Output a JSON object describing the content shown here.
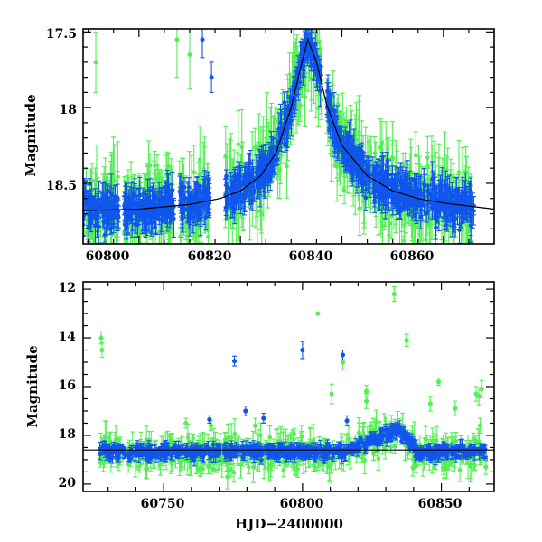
{
  "colors": {
    "green": "#55ee55",
    "blue": "#1155ee",
    "model": "#000000",
    "frame": "#000000"
  },
  "chart_data": [
    {
      "type": "scatter",
      "title": "",
      "xlabel": "",
      "ylabel": "Magnitude",
      "xlim": [
        60789,
        60870
      ],
      "ylim": [
        18.9,
        17.48
      ],
      "y_inverted": true,
      "x_ticks": [
        "60800",
        "60820",
        "60840",
        "60860"
      ],
      "y_ticks": [
        "17.5",
        "18",
        "18.5"
      ],
      "grid": false,
      "legend": "none",
      "model_curve": {
        "x": [
          60789,
          60800,
          60810,
          60816,
          60820,
          60824,
          60827,
          60830,
          60832,
          60833.3,
          60835,
          60837,
          60840,
          60845,
          60850,
          60855,
          60860,
          60865,
          60870
        ],
        "y": [
          18.68,
          18.67,
          18.64,
          18.6,
          18.55,
          18.45,
          18.3,
          18.0,
          17.72,
          17.55,
          17.7,
          17.98,
          18.25,
          18.45,
          18.55,
          18.6,
          18.63,
          18.65,
          18.67
        ]
      },
      "series": [
        {
          "color": "green",
          "segments": [
            [
              60789,
              60796
            ],
            [
              60797,
              60807
            ],
            [
              60808,
              60814
            ],
            [
              60817,
              60836
            ],
            [
              60837,
              60866
            ]
          ],
          "typical_mag": 18.6,
          "typical_err": 0.12,
          "scatter": 0.18
        },
        {
          "color": "blue",
          "segments": [
            [
              60789,
              60796
            ],
            [
              60797,
              60807
            ],
            [
              60808,
              60814
            ],
            [
              60817,
              60836
            ],
            [
              60837,
              60866
            ]
          ],
          "typical_mag": 18.62,
          "typical_err": 0.06,
          "scatter": 0.08
        }
      ],
      "outliers": [
        {
          "color": "blue",
          "x": 60812.5,
          "y": 17.55,
          "err": 0.12
        },
        {
          "color": "blue",
          "x": 60814.3,
          "y": 17.8,
          "err": 0.1
        },
        {
          "color": "green",
          "x": 60791.5,
          "y": 17.7,
          "err": 0.2
        },
        {
          "color": "green",
          "x": 60807.5,
          "y": 17.55,
          "err": 0.25
        },
        {
          "color": "green",
          "x": 60810.0,
          "y": 17.65,
          "err": 0.22
        }
      ]
    },
    {
      "type": "scatter",
      "title": "",
      "xlabel": "HJD−2400000",
      "ylabel": "Magnitude",
      "xlim": [
        60721,
        60869
      ],
      "ylim": [
        20.3,
        11.7
      ],
      "y_inverted": true,
      "x_ticks": [
        "60750",
        "60800",
        "60850"
      ],
      "y_ticks": [
        "12",
        "14",
        "16",
        "18",
        "20"
      ],
      "grid": false,
      "legend": "none",
      "baseline_mag": 18.6,
      "series": [
        {
          "color": "green",
          "x_range": [
            60727,
            60866
          ],
          "typical_mag": 18.75,
          "typical_err": 0.35,
          "scatter": 0.45
        },
        {
          "color": "blue",
          "x_range": [
            60727,
            60866
          ],
          "typical_mag": 18.68,
          "typical_err": 0.15,
          "scatter": 0.18
        }
      ],
      "outliers": [
        {
          "color": "green",
          "x": 60727.5,
          "y": 14.0,
          "err": 0.25
        },
        {
          "color": "green",
          "x": 60727.8,
          "y": 14.5,
          "err": 0.3
        },
        {
          "color": "green",
          "x": 60758.0,
          "y": 17.5,
          "err": 0.2
        },
        {
          "color": "green",
          "x": 60767.0,
          "y": 17.6,
          "err": 0.2
        },
        {
          "color": "green",
          "x": 60771.0,
          "y": 18.9,
          "err": 0.6
        },
        {
          "color": "green",
          "x": 60773.0,
          "y": 19.7,
          "err": 0.5
        },
        {
          "color": "green",
          "x": 60783.0,
          "y": 17.6,
          "err": 0.3
        },
        {
          "color": "green",
          "x": 60805.5,
          "y": 13.0,
          "err": 0.0
        },
        {
          "color": "green",
          "x": 60814.5,
          "y": 15.0,
          "err": 0.3
        },
        {
          "color": "green",
          "x": 60810.5,
          "y": 16.3,
          "err": 0.4
        },
        {
          "color": "green",
          "x": 60823.0,
          "y": 16.2,
          "err": 0.25
        },
        {
          "color": "green",
          "x": 60823.0,
          "y": 16.6,
          "err": 0.3
        },
        {
          "color": "green",
          "x": 60833.0,
          "y": 12.2,
          "err": 0.3
        },
        {
          "color": "green",
          "x": 60837.5,
          "y": 14.1,
          "err": 0.25
        },
        {
          "color": "green",
          "x": 60846.0,
          "y": 16.7,
          "err": 0.3
        },
        {
          "color": "green",
          "x": 60849.0,
          "y": 15.8,
          "err": 0.15
        },
        {
          "color": "green",
          "x": 60855.0,
          "y": 16.9,
          "err": 0.3
        },
        {
          "color": "green",
          "x": 60862.5,
          "y": 16.3,
          "err": 0.3
        },
        {
          "color": "green",
          "x": 60863.5,
          "y": 16.4,
          "err": 0.35
        },
        {
          "color": "green",
          "x": 60864.5,
          "y": 16.1,
          "err": 0.35
        },
        {
          "color": "green",
          "x": 60864.0,
          "y": 17.6,
          "err": 0.3
        },
        {
          "color": "green",
          "x": 60866.0,
          "y": 19.3,
          "err": 0.3
        },
        {
          "color": "blue",
          "x": 60766.5,
          "y": 17.35,
          "err": 0.15
        },
        {
          "color": "blue",
          "x": 60775.5,
          "y": 14.95,
          "err": 0.2
        },
        {
          "color": "blue",
          "x": 60779.5,
          "y": 17.0,
          "err": 0.2
        },
        {
          "color": "blue",
          "x": 60786.0,
          "y": 17.3,
          "err": 0.2
        },
        {
          "color": "blue",
          "x": 60800.0,
          "y": 14.5,
          "err": 0.35
        },
        {
          "color": "blue",
          "x": 60814.5,
          "y": 14.7,
          "err": 0.2
        },
        {
          "color": "blue",
          "x": 60816.0,
          "y": 17.4,
          "err": 0.2
        }
      ]
    }
  ]
}
